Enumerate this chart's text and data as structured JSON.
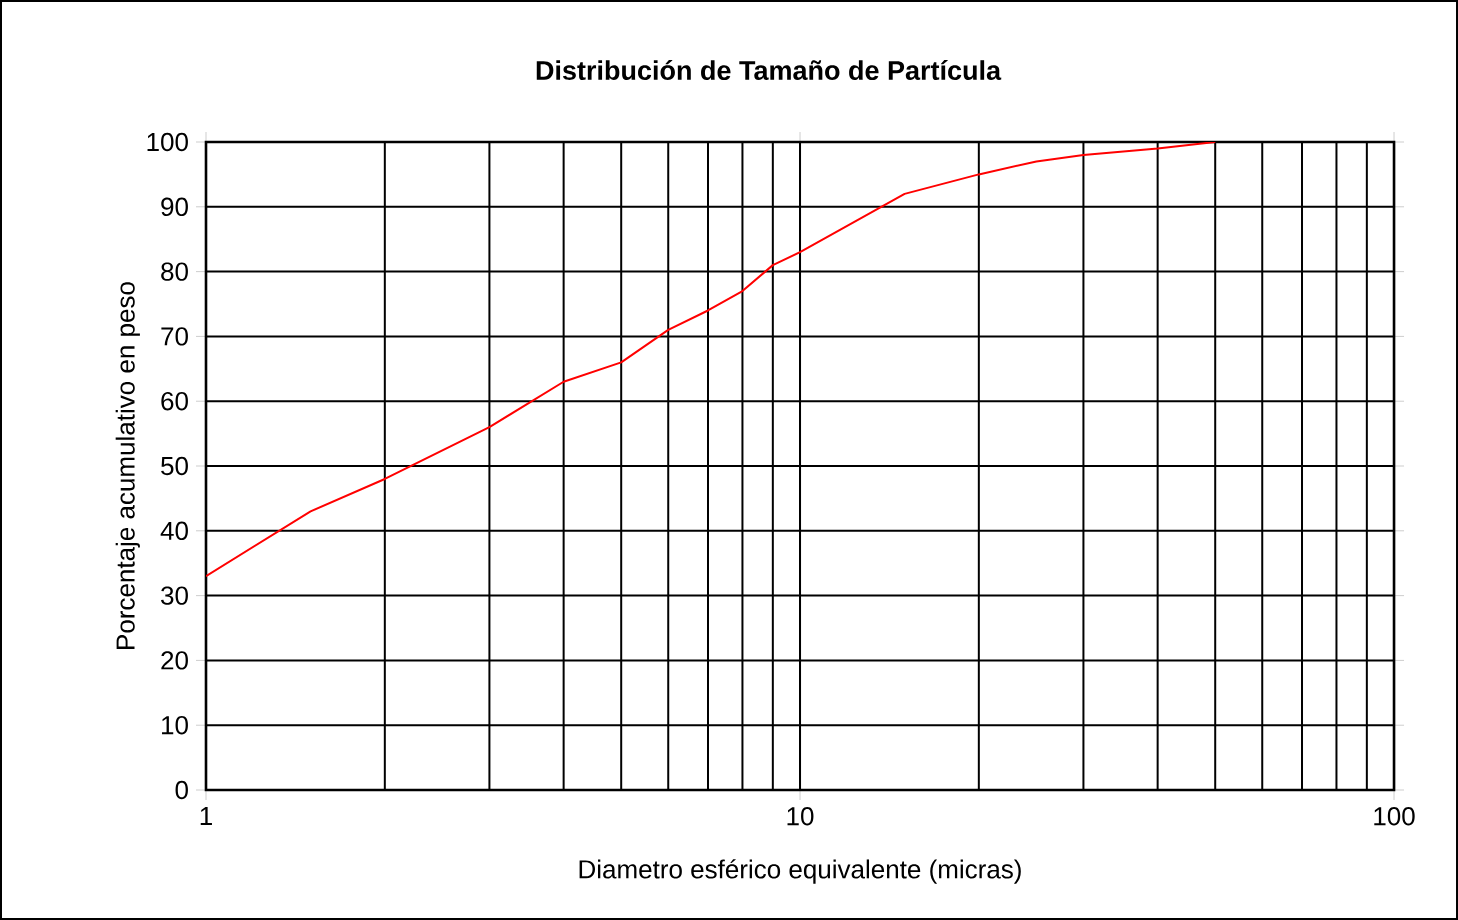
{
  "chart_data": {
    "type": "line",
    "title": "Distribución de Tamaño de Partícula",
    "xlabel": "Diametro esférico equivalente (micras)",
    "ylabel": "Porcentaje acumulativo en peso",
    "x": [
      1,
      1.5,
      2,
      3,
      4,
      5,
      6,
      7,
      8,
      9,
      10,
      15,
      20,
      25,
      30,
      40,
      50
    ],
    "series": [
      {
        "color": "#ff0000",
        "values": [
          33,
          43,
          48,
          56,
          63,
          66,
          71,
          74,
          77,
          81,
          83,
          92,
          95,
          97,
          98,
          99,
          100
        ]
      }
    ],
    "xlim": [
      1,
      100
    ],
    "ylim": [
      0,
      100
    ],
    "xticks": [
      1,
      10,
      100
    ],
    "yticks": [
      0,
      10,
      20,
      30,
      40,
      50,
      60,
      70,
      80,
      90,
      100
    ],
    "log": "x",
    "grid": true
  }
}
